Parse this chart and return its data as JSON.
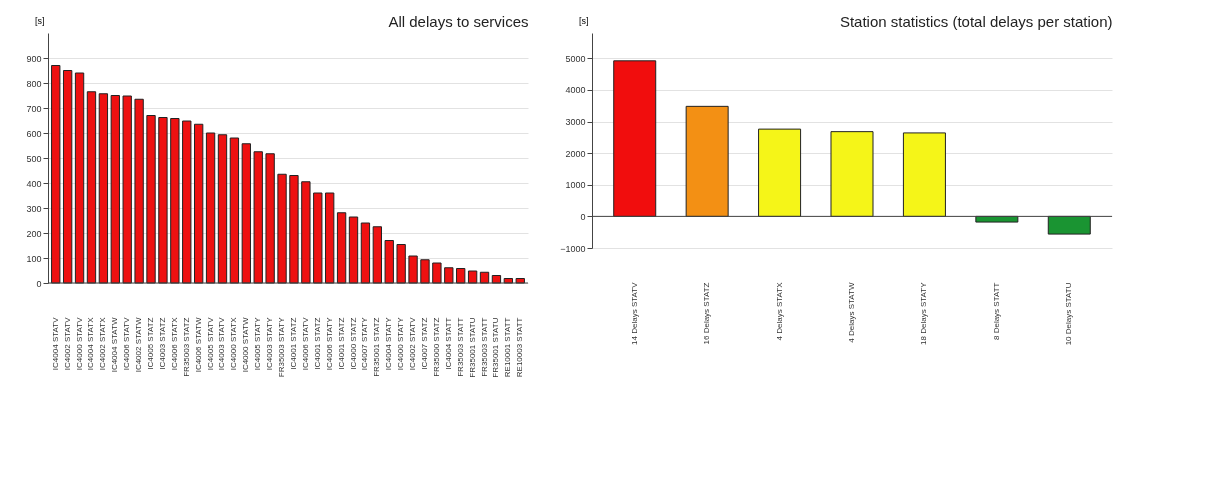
{
  "chart_data": [
    {
      "type": "bar",
      "title": "All delays to services",
      "ylabel": "[s]",
      "categories": [
        "IC4004 STATV",
        "IC4002 STATV",
        "IC4000 STATV",
        "IC4004 STATX",
        "IC4002 STATX",
        "IC4004 STATW",
        "IC4006 STATV",
        "IC4002 STATW",
        "IC4005 STATZ",
        "IC4003 STATZ",
        "IC4006 STATX",
        "FR35003 STATZ",
        "IC4006 STATW",
        "IC4005 STATV",
        "IC4003 STATV",
        "IC4000 STATX",
        "IC4000 STATW",
        "IC4005 STATY",
        "IC4003 STATY",
        "FR35003 STATY",
        "IC4001 STATZ",
        "IC4006 STATV",
        "IC4001 STATZ",
        "IC4006 STATY",
        "IC4001 STATZ",
        "IC4000 STATZ",
        "IC4007 STATY",
        "FR35001 STATZ",
        "IC4004 STATY",
        "IC4000 STATY",
        "IC4002 STATV",
        "IC4007 STATZ",
        "FR35000 STATZ",
        "IC4004 STATT",
        "FR35003 STATT",
        "FR35001 STATU",
        "FR35003 STATT",
        "FR35001 STATU",
        "RE10001 STATT",
        "RE10003 STATT"
      ],
      "values": [
        870,
        850,
        840,
        765,
        757,
        750,
        748,
        735,
        670,
        662,
        658,
        648,
        635,
        600,
        593,
        580,
        557,
        525,
        517,
        435,
        430,
        405,
        360,
        360,
        281,
        264,
        240,
        225,
        170,
        154,
        108,
        93,
        80,
        61,
        58,
        48,
        43,
        30,
        18,
        18
      ],
      "color": "#ee1111",
      "ylim": [
        0,
        1000
      ],
      "yticks": [
        0,
        100,
        200,
        300,
        400,
        500,
        600,
        700,
        800,
        900
      ],
      "grid": "y"
    },
    {
      "type": "bar",
      "title": "Station statistics (total delays per station)",
      "ylabel": "[s]",
      "categories": [
        "14 Delays STATV",
        "16 Delays STATZ",
        "4 Delays STATX",
        "4 Delays STATW",
        "18 Delays STATY",
        "8 Delays STATT",
        "10 Delays STATU"
      ],
      "values": [
        4920,
        3480,
        2760,
        2680,
        2640,
        -180,
        -560
      ],
      "colors": [
        "#f10d0d",
        "#f39014",
        "#f5f518",
        "#f5f518",
        "#f5f518",
        "#1a9432",
        "#1a9432"
      ],
      "ylim": [
        -1000,
        5800
      ],
      "yticks": [
        -1000,
        0,
        1000,
        2000,
        3000,
        4000,
        5000
      ],
      "grid": "y"
    }
  ]
}
